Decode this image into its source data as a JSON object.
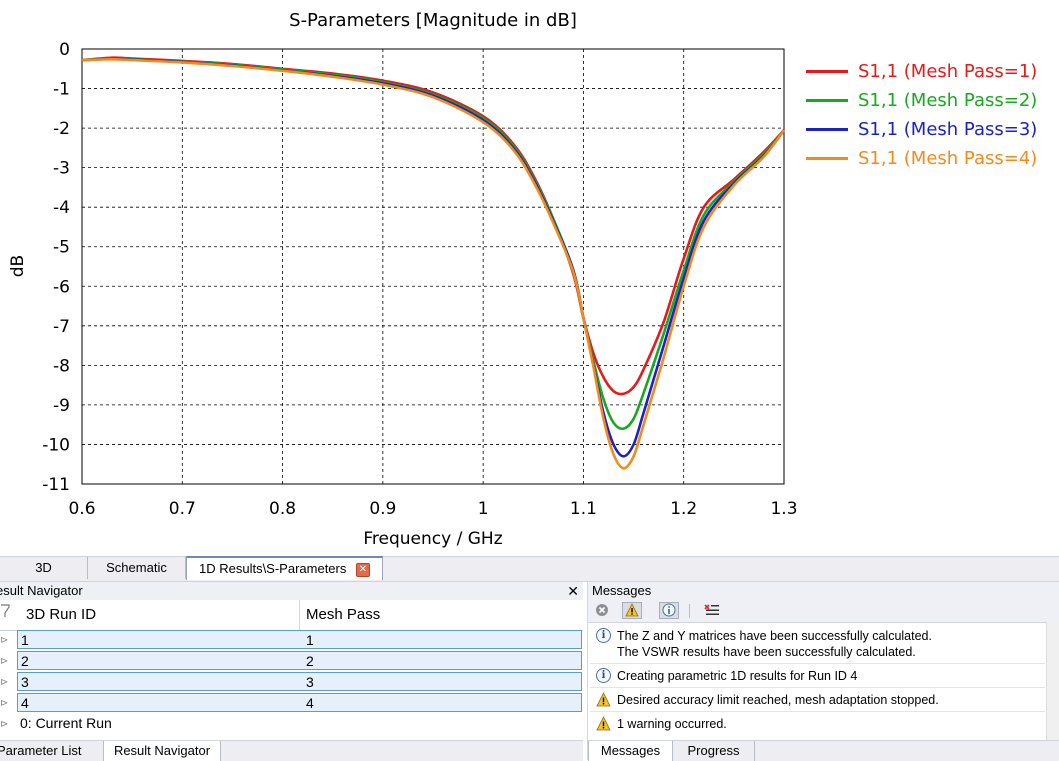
{
  "chart_data": {
    "type": "line",
    "title": "S-Parameters [Magnitude in dB]",
    "xlabel": "Frequency / GHz",
    "ylabel": "dB",
    "xlim": [
      0.6,
      1.3
    ],
    "ylim": [
      -11,
      0
    ],
    "x_ticks": [
      "0.6",
      "0.7",
      "0.8",
      "0.9",
      "1",
      "1.1",
      "1.2",
      "1.3"
    ],
    "y_ticks": [
      "0",
      "-1",
      "-2",
      "-3",
      "-4",
      "-5",
      "-6",
      "-7",
      "-8",
      "-9",
      "-10",
      "-11"
    ],
    "grid": true,
    "legend_position": "right",
    "series": [
      {
        "name": "S1,1 (Mesh Pass=1)",
        "color": "#e41a1c",
        "x": [
          0.6,
          0.63,
          0.65,
          0.7,
          0.75,
          0.8,
          0.85,
          0.9,
          0.95,
          1.0,
          1.03,
          1.05,
          1.07,
          1.09,
          1.1,
          1.11,
          1.12,
          1.13,
          1.14,
          1.15,
          1.16,
          1.18,
          1.2,
          1.22,
          1.25,
          1.28,
          1.3
        ],
        "y": [
          -0.28,
          -0.22,
          -0.24,
          -0.3,
          -0.38,
          -0.5,
          -0.62,
          -0.8,
          -1.1,
          -1.7,
          -2.4,
          -3.2,
          -4.3,
          -5.7,
          -6.8,
          -7.7,
          -8.3,
          -8.65,
          -8.72,
          -8.55,
          -8.1,
          -6.9,
          -5.3,
          -4.0,
          -3.3,
          -2.6,
          -2.05
        ]
      },
      {
        "name": "S1,1 (Mesh Pass=2)",
        "color": "#19a81f",
        "x": [
          0.6,
          0.63,
          0.65,
          0.7,
          0.75,
          0.8,
          0.85,
          0.9,
          0.95,
          1.0,
          1.03,
          1.05,
          1.07,
          1.09,
          1.1,
          1.11,
          1.12,
          1.13,
          1.14,
          1.15,
          1.16,
          1.18,
          1.2,
          1.22,
          1.25,
          1.28,
          1.3
        ],
        "y": [
          -0.28,
          -0.24,
          -0.26,
          -0.32,
          -0.4,
          -0.52,
          -0.65,
          -0.84,
          -1.15,
          -1.75,
          -2.45,
          -3.25,
          -4.3,
          -5.6,
          -6.8,
          -7.9,
          -8.85,
          -9.45,
          -9.6,
          -9.35,
          -8.7,
          -7.2,
          -5.6,
          -4.2,
          -3.35,
          -2.65,
          -2.05
        ]
      },
      {
        "name": "S1,1 (Mesh Pass=3)",
        "color": "#1a22c8",
        "x": [
          0.6,
          0.63,
          0.65,
          0.7,
          0.75,
          0.8,
          0.85,
          0.9,
          0.95,
          1.0,
          1.03,
          1.05,
          1.07,
          1.09,
          1.1,
          1.11,
          1.12,
          1.13,
          1.14,
          1.15,
          1.16,
          1.18,
          1.2,
          1.22,
          1.25,
          1.28,
          1.3
        ],
        "y": [
          -0.28,
          -0.25,
          -0.27,
          -0.33,
          -0.42,
          -0.54,
          -0.68,
          -0.87,
          -1.18,
          -1.8,
          -2.5,
          -3.3,
          -4.35,
          -5.6,
          -6.8,
          -8.0,
          -9.2,
          -10.0,
          -10.3,
          -10.0,
          -9.2,
          -7.5,
          -5.8,
          -4.35,
          -3.4,
          -2.7,
          -2.05
        ]
      },
      {
        "name": "S1,1 (Mesh Pass=4)",
        "color": "#f28a1c",
        "x": [
          0.6,
          0.63,
          0.65,
          0.7,
          0.75,
          0.8,
          0.85,
          0.9,
          0.95,
          1.0,
          1.03,
          1.05,
          1.07,
          1.09,
          1.1,
          1.11,
          1.12,
          1.13,
          1.14,
          1.15,
          1.16,
          1.18,
          1.2,
          1.22,
          1.25,
          1.28,
          1.3
        ],
        "y": [
          -0.28,
          -0.26,
          -0.28,
          -0.34,
          -0.43,
          -0.55,
          -0.7,
          -0.9,
          -1.22,
          -1.85,
          -2.55,
          -3.35,
          -4.4,
          -5.65,
          -6.8,
          -8.05,
          -9.35,
          -10.25,
          -10.6,
          -10.3,
          -9.5,
          -7.8,
          -6.0,
          -4.5,
          -3.45,
          -2.72,
          -2.05
        ]
      }
    ]
  },
  "view_tabs": [
    {
      "label": "3D"
    },
    {
      "label": "Schematic"
    },
    {
      "label": "1D Results\\S-Parameters",
      "active": true
    }
  ],
  "navigator": {
    "title": "esult Navigator",
    "columns": [
      "3D Run ID",
      "Mesh Pass"
    ],
    "rows": [
      {
        "run_id": "1",
        "mesh_pass": "1"
      },
      {
        "run_id": "2",
        "mesh_pass": "2"
      },
      {
        "run_id": "3",
        "mesh_pass": "3"
      },
      {
        "run_id": "4",
        "mesh_pass": "4"
      }
    ],
    "current_run": "0: Current Run",
    "bottom_tabs": [
      "Parameter List",
      "Result Navigator"
    ]
  },
  "messages": {
    "title": "Messages",
    "items": [
      {
        "type": "info",
        "lines": [
          "The Z and Y matrices have been successfully calculated.",
          "The VSWR results have been successfully calculated."
        ]
      },
      {
        "type": "info",
        "lines": [
          "Creating parametric 1D results for Run ID 4"
        ]
      },
      {
        "type": "warning",
        "lines": [
          "Desired accuracy limit reached, mesh adaptation stopped."
        ]
      },
      {
        "type": "warning",
        "lines": [
          "1 warning occurred."
        ]
      }
    ],
    "bottom_tabs": [
      "Messages",
      "Progress"
    ]
  }
}
